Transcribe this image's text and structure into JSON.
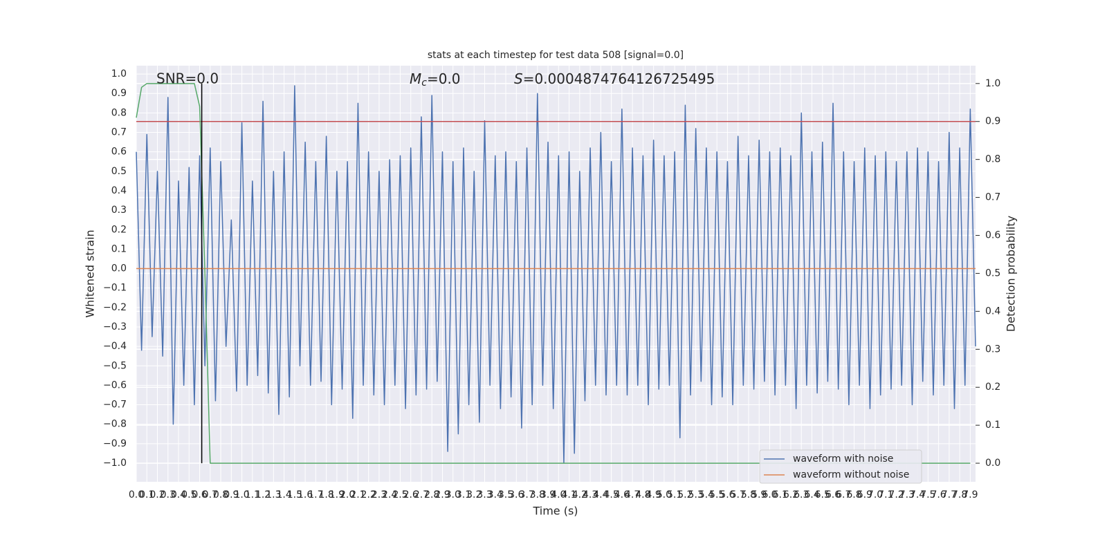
{
  "chart_data": {
    "type": "line",
    "title": "stats at each timestep for test data 508 [signal=0.0]",
    "x_label": "Time (s)",
    "y_label": "Whitened strain",
    "y2_label": "Detection probability",
    "annotations": [
      {
        "text": "SNR=0.0"
      },
      {
        "symbol": "M",
        "subscript": "c",
        "text": "=0.0"
      },
      {
        "symbol": "S",
        "text": "=0.0004874764126725495"
      }
    ],
    "grid": true,
    "legend": "lower right",
    "xlim": [
      0,
      7.95
    ],
    "ylim": [
      -1.096,
      1.043
    ],
    "y2lim": [
      -0.049,
      1.047
    ],
    "xticks": [
      {
        "value": 0,
        "label": "0.0"
      },
      0.1,
      0.2,
      0.3,
      0.4,
      0.5,
      0.6,
      0.7,
      0.8,
      0.9,
      {
        "value": 1,
        "label": "1.0"
      },
      1.1,
      1.2,
      1.3,
      1.4,
      1.5,
      1.6,
      1.7,
      1.8,
      1.9,
      {
        "value": 2,
        "label": "2.0"
      },
      2.1,
      2.2,
      2.3,
      2.4,
      2.5,
      2.6,
      2.7,
      2.8,
      2.9,
      {
        "value": 3,
        "label": "3.0"
      },
      3.1,
      3.2,
      3.3,
      3.4,
      3.5,
      3.6,
      3.7,
      3.8,
      3.9,
      {
        "value": 4,
        "label": "4.0"
      },
      4.1,
      4.2,
      4.3,
      4.4,
      4.5,
      4.6,
      4.7,
      4.8,
      4.9,
      {
        "value": 5,
        "label": "5.0"
      },
      5.1,
      5.2,
      5.3,
      5.4,
      5.5,
      5.6,
      5.7,
      5.8,
      5.9,
      {
        "value": 6,
        "label": "6.0"
      },
      6.1,
      6.2,
      6.3,
      6.4,
      6.5,
      6.6,
      6.7,
      6.8,
      6.9,
      {
        "value": 7,
        "label": "7.0"
      },
      7.1,
      7.2,
      7.3,
      7.4,
      7.5,
      7.6,
      7.7,
      7.8,
      7.9
    ],
    "yticks": [
      {
        "value": -1,
        "label": "−1.0"
      },
      {
        "value": -0.9,
        "label": "−0.9"
      },
      {
        "value": -0.8,
        "label": "−0.8"
      },
      {
        "value": -0.7,
        "label": "−0.7"
      },
      {
        "value": -0.6,
        "label": "−0.6"
      },
      {
        "value": -0.5,
        "label": "−0.5"
      },
      {
        "value": -0.4,
        "label": "−0.4"
      },
      {
        "value": -0.3,
        "label": "−0.3"
      },
      {
        "value": -0.2,
        "label": "−0.2"
      },
      {
        "value": -0.1,
        "label": "−0.1"
      },
      {
        "value": 0,
        "label": "0.0"
      },
      0.1,
      0.2,
      0.3,
      0.4,
      0.5,
      0.6,
      0.7,
      0.8,
      0.9,
      {
        "value": 1,
        "label": "1.0"
      }
    ],
    "y2ticks": [
      {
        "value": 0,
        "label": "0.0"
      },
      0.1,
      0.2,
      0.3,
      0.4,
      0.5,
      0.6,
      0.7,
      0.8,
      0.9,
      {
        "value": 1,
        "label": "1.0"
      }
    ],
    "series": [
      {
        "name": "waveform with noise",
        "color": "#4c72b0",
        "x": [
          0,
          0.05,
          0.1,
          0.15,
          0.2,
          0.25,
          0.3,
          0.35,
          0.4,
          0.45,
          0.5,
          0.55,
          0.6,
          0.65,
          0.7,
          0.75,
          0.8,
          0.85,
          0.9,
          0.95,
          1,
          1.05,
          1.1,
          1.15,
          1.2,
          1.25,
          1.3,
          1.35,
          1.4,
          1.45,
          1.5,
          1.55,
          1.6,
          1.65,
          1.7,
          1.75,
          1.8,
          1.85,
          1.9,
          1.95,
          2,
          2.05,
          2.1,
          2.15,
          2.2,
          2.25,
          2.3,
          2.35,
          2.4,
          2.45,
          2.5,
          2.55,
          2.6,
          2.65,
          2.7,
          2.75,
          2.8,
          2.85,
          2.9,
          2.95,
          3,
          3.05,
          3.1,
          3.15,
          3.2,
          3.25,
          3.3,
          3.35,
          3.4,
          3.45,
          3.5,
          3.55,
          3.6,
          3.65,
          3.7,
          3.75,
          3.8,
          3.85,
          3.9,
          3.95,
          4,
          4.05,
          4.1,
          4.15,
          4.2,
          4.25,
          4.3,
          4.35,
          4.4,
          4.45,
          4.5,
          4.55,
          4.6,
          4.65,
          4.7,
          4.75,
          4.8,
          4.85,
          4.9,
          4.95,
          5,
          5.05,
          5.1,
          5.15,
          5.2,
          5.25,
          5.3,
          5.35,
          5.4,
          5.45,
          5.5,
          5.55,
          5.6,
          5.65,
          5.7,
          5.75,
          5.8,
          5.85,
          5.9,
          5.95,
          6,
          6.05,
          6.1,
          6.15,
          6.2,
          6.25,
          6.3,
          6.35,
          6.4,
          6.45,
          6.5,
          6.55,
          6.6,
          6.65,
          6.7,
          6.75,
          6.8,
          6.85,
          6.9,
          6.95,
          7,
          7.05,
          7.1,
          7.15,
          7.2,
          7.25,
          7.3,
          7.35,
          7.4,
          7.45,
          7.5,
          7.55,
          7.6,
          7.65,
          7.7,
          7.75,
          7.8,
          7.85,
          7.9,
          7.95
        ],
        "values": [
          0.6,
          -0.42,
          0.69,
          -0.35,
          0.5,
          -0.45,
          0.88,
          -0.8,
          0.45,
          -0.6,
          0.52,
          -0.7,
          0.58,
          -0.5,
          0.62,
          -0.68,
          0.55,
          -0.4,
          0.25,
          -0.63,
          0.75,
          -0.6,
          0.45,
          -0.55,
          0.86,
          -0.64,
          0.5,
          -0.75,
          0.6,
          -0.66,
          0.94,
          -0.5,
          0.65,
          -0.6,
          0.55,
          -0.58,
          0.68,
          -0.7,
          0.5,
          -0.62,
          0.55,
          -0.77,
          0.85,
          -0.6,
          0.6,
          -0.65,
          0.5,
          -0.7,
          0.56,
          -0.6,
          0.58,
          -0.72,
          0.62,
          -0.65,
          0.78,
          -0.62,
          0.89,
          -0.58,
          0.6,
          -0.94,
          0.55,
          -0.85,
          0.62,
          -0.7,
          0.5,
          -0.79,
          0.76,
          -0.6,
          0.58,
          -0.72,
          0.6,
          -0.66,
          0.55,
          -0.82,
          0.62,
          -0.7,
          0.9,
          -0.6,
          0.65,
          -0.72,
          0.58,
          -1.0,
          0.6,
          -0.95,
          0.5,
          -0.68,
          0.62,
          -0.6,
          0.7,
          -0.65,
          0.55,
          -0.6,
          0.82,
          -0.65,
          0.62,
          -0.6,
          0.58,
          -0.7,
          0.66,
          -0.62,
          0.58,
          -0.6,
          0.6,
          -0.87,
          0.84,
          -0.65,
          0.72,
          -0.58,
          0.62,
          -0.7,
          0.6,
          -0.66,
          0.55,
          -0.7,
          0.68,
          -0.6,
          0.58,
          -0.62,
          0.66,
          -0.58,
          0.6,
          -0.65,
          0.62,
          -0.6,
          0.58,
          -0.72,
          0.8,
          -0.6,
          0.6,
          -0.64,
          0.65,
          -0.58,
          0.85,
          -0.62,
          0.6,
          -0.7,
          0.55,
          -0.6,
          0.62,
          -0.72,
          0.58,
          -0.65,
          0.6,
          -0.62,
          0.55,
          -0.6,
          0.6,
          -0.7,
          0.62,
          -0.58,
          0.6,
          -0.65,
          0.55,
          -0.6,
          0.7,
          -0.72,
          0.62,
          -0.6,
          0.82,
          -0.4
        ]
      },
      {
        "name": "waveform without noise",
        "color": "#dd8452",
        "x": [
          0,
          7.95
        ],
        "values": [
          0,
          0
        ]
      },
      {
        "color": "#c44e52",
        "axis": "y2",
        "x": [
          0,
          7.95
        ],
        "values": [
          0.9,
          0.9
        ]
      },
      {
        "color": "#55a868",
        "axis": "y2",
        "x": [
          0,
          0.05,
          0.1,
          0.2,
          0.3,
          0.4,
          0.5,
          0.55,
          0.6,
          0.65,
          0.7,
          7.9
        ],
        "values": [
          0.91,
          0.99,
          1.0,
          1.0,
          1.0,
          1.0,
          1.0,
          1.0,
          0.94,
          0.5,
          0.0,
          0.0
        ]
      },
      {
        "color": "#000000",
        "axis": "y2",
        "x": [
          0.62,
          0.62
        ],
        "values": [
          0,
          1
        ]
      }
    ]
  }
}
